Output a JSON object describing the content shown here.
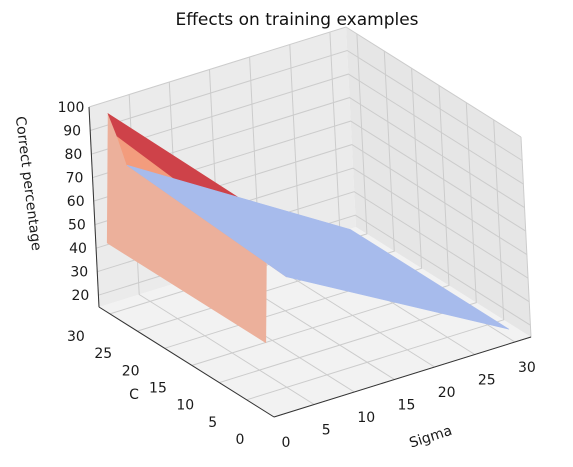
{
  "chart_data": {
    "type": "surface3d",
    "title": "Effects on training examples",
    "xlabel": "Sigma",
    "ylabel": "C",
    "zlabel": "Correct percentage",
    "xlim": [
      0,
      32
    ],
    "ylim": [
      0,
      32
    ],
    "zlim": [
      15,
      100
    ],
    "xticks": [
      "0",
      "5",
      "10",
      "15",
      "20",
      "25",
      "30"
    ],
    "yticks": [
      "0",
      "5",
      "10",
      "15",
      "20",
      "25",
      "30"
    ],
    "zticks": [
      "20",
      "30",
      "40",
      "50",
      "60",
      "70",
      "80",
      "90",
      "100"
    ],
    "grid": true,
    "colormap": "coolwarm",
    "sigma": [
      0.1,
      1,
      2,
      3,
      30
    ],
    "C": [
      1,
      30
    ],
    "correct_percentage": [
      [
        45,
        98,
        80,
        70,
        19
      ],
      [
        45,
        99,
        88,
        75,
        19
      ]
    ]
  }
}
